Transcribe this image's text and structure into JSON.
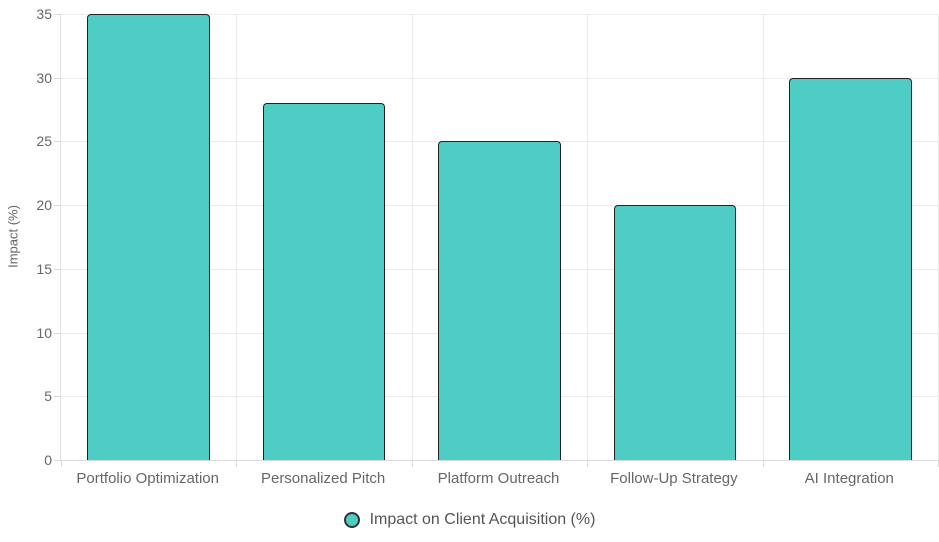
{
  "chart_data": {
    "type": "bar",
    "title": "",
    "xlabel": "",
    "ylabel": "Impact (%)",
    "categories": [
      "Portfolio Optimization",
      "Personalized Pitch",
      "Platform Outreach",
      "Follow-Up Strategy",
      "AI Integration"
    ],
    "values": [
      35,
      28,
      25,
      20,
      30
    ],
    "ylim": [
      0,
      35
    ],
    "ytick_step": 5,
    "ytick_labels": [
      "0",
      "5",
      "10",
      "15",
      "20",
      "25",
      "30",
      "35"
    ],
    "grid": true,
    "legend": {
      "label": "Impact on Client Acquisition (%)",
      "position": "bottom",
      "marker": "circle-icon"
    },
    "colors": {
      "bar_fill": "#4ECDC4",
      "bar_border": "#222222",
      "grid_line": "#ebebeb",
      "axis_line": "#d9d9d9",
      "tick_text": "#666666",
      "axis_title_text": "#666666",
      "legend_text": "#555555",
      "background": "#ffffff"
    }
  }
}
